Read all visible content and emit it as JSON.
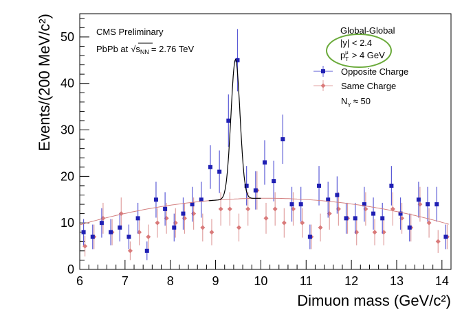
{
  "chart_data": {
    "type": "scatter",
    "title": "",
    "xlabel": "Dimuon mass (GeV/c²)",
    "ylabel": "Events/(200 MeV/c²)",
    "xlim": [
      6,
      14.2
    ],
    "ylim": [
      0,
      55
    ],
    "xticks": [
      6,
      7,
      8,
      9,
      10,
      11,
      12,
      13,
      14
    ],
    "yticks": [
      0,
      10,
      20,
      30,
      40,
      50
    ],
    "xtick_labels": [
      "6",
      "7",
      "8",
      "9",
      "10",
      "11",
      "12",
      "13",
      "14"
    ],
    "ytick_labels": [
      "0",
      "10",
      "20",
      "30",
      "40",
      "50"
    ],
    "annotations": {
      "experiment": "CMS Preliminary",
      "collision_prefix": "PbPb at",
      "sqrt_symbol": "√",
      "sqrt_s": "s",
      "sqrt_sub": "NN",
      "energy": "= 2.76 TeV",
      "selection": "Global-Global",
      "cut_y": "|y| < 2.4",
      "cut_pt_p": "p",
      "cut_pt_sub": "T",
      "cut_pt_sup": "μ",
      "cut_pt_rest": "> 4 GeV",
      "n_label": "N",
      "n_sub": "Υ",
      "n_value": "≈ 50"
    },
    "legend": {
      "position": "top-right",
      "entries": [
        "Opposite Charge",
        "Same Charge"
      ]
    },
    "colors": {
      "opposite": "#1f1fb3",
      "opposite_err": "#5a5ad6",
      "same": "#d97a7a",
      "same_err": "#e0a0a0",
      "fit": "#000000",
      "bg_curve": "#d48080",
      "ellipse": "#6aaa3a"
    },
    "series": [
      {
        "name": "Opposite Charge",
        "x": [
          6.1,
          6.3,
          6.5,
          6.7,
          6.9,
          7.1,
          7.3,
          7.5,
          7.7,
          7.9,
          8.1,
          8.3,
          8.5,
          8.7,
          8.9,
          9.1,
          9.3,
          9.5,
          9.7,
          9.9,
          10.1,
          10.3,
          10.5,
          10.7,
          10.9,
          11.1,
          11.3,
          11.5,
          11.7,
          11.9,
          12.1,
          12.3,
          12.5,
          12.7,
          12.9,
          13.1,
          13.3,
          13.5,
          13.7,
          13.9,
          14.1
        ],
        "y": [
          8,
          7,
          10,
          8,
          9,
          7,
          11,
          4,
          15,
          13,
          9,
          12,
          14,
          15,
          22,
          21,
          32,
          45,
          18,
          17,
          23,
          19,
          28,
          14,
          14,
          7,
          18,
          15,
          16,
          11,
          11,
          14,
          12,
          11,
          18,
          12,
          9,
          15,
          14,
          14,
          7
        ]
      },
      {
        "name": "Same Charge",
        "x": [
          6.1,
          6.3,
          6.5,
          6.7,
          6.9,
          7.1,
          7.3,
          7.5,
          7.7,
          7.9,
          8.1,
          8.3,
          8.5,
          8.7,
          8.9,
          9.1,
          9.3,
          9.5,
          9.7,
          9.9,
          10.1,
          10.3,
          10.5,
          10.7,
          10.9,
          11.1,
          11.3,
          11.5,
          11.7,
          11.9,
          12.1,
          12.3,
          12.5,
          12.7,
          12.9,
          13.1,
          13.3,
          13.5,
          13.7,
          13.9,
          14.1
        ],
        "y": [
          5,
          7,
          11,
          8,
          12,
          4,
          8,
          7,
          10,
          11,
          10,
          11,
          12,
          9,
          8,
          13,
          13,
          9,
          13,
          17,
          11,
          13,
          10,
          13,
          10,
          7,
          9,
          12,
          13,
          11,
          8,
          13,
          8,
          8,
          13,
          11,
          9,
          14,
          10,
          6,
          7
        ]
      }
    ]
  }
}
